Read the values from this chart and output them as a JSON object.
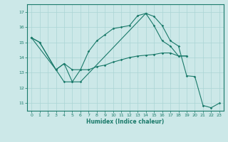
{
  "background_color": "#cce8e8",
  "line_color": "#1a7a6a",
  "grid_color": "#aad4d4",
  "xlabel": "Humidex (Indice chaleur)",
  "ylim": [
    10.5,
    17.5
  ],
  "xlim": [
    -0.5,
    23.5
  ],
  "yticks": [
    11,
    12,
    13,
    14,
    15,
    16,
    17
  ],
  "xticks": [
    0,
    1,
    2,
    3,
    4,
    5,
    6,
    7,
    8,
    9,
    10,
    11,
    12,
    13,
    14,
    15,
    16,
    17,
    18,
    19,
    20,
    21,
    22,
    23
  ],
  "series": [
    {
      "x": [
        0,
        1,
        3,
        4,
        5,
        6,
        7,
        8,
        9,
        10,
        11,
        12,
        13,
        14,
        15,
        16,
        17,
        18,
        19
      ],
      "y": [
        15.3,
        15.0,
        13.2,
        13.6,
        13.2,
        13.2,
        14.4,
        15.1,
        15.5,
        15.9,
        16.0,
        16.1,
        16.75,
        16.9,
        16.1,
        15.1,
        14.75,
        14.1,
        14.1
      ]
    },
    {
      "x": [
        0,
        3,
        4,
        5,
        6,
        7,
        8,
        9,
        10,
        11,
        12,
        13,
        14,
        15,
        16,
        17,
        18,
        19
      ],
      "y": [
        15.3,
        13.2,
        12.4,
        12.4,
        13.2,
        13.2,
        13.4,
        13.5,
        13.7,
        13.85,
        14.0,
        14.1,
        14.15,
        14.2,
        14.3,
        14.3,
        14.1,
        14.1
      ]
    },
    {
      "x": [
        0,
        1,
        3,
        4,
        5,
        6,
        14,
        15,
        16,
        17,
        18,
        19,
        20,
        21,
        22,
        23
      ],
      "y": [
        15.3,
        15.0,
        13.2,
        13.6,
        12.4,
        12.4,
        16.9,
        16.7,
        16.1,
        15.1,
        14.75,
        12.8,
        12.75,
        10.85,
        10.7,
        11.0
      ]
    }
  ]
}
